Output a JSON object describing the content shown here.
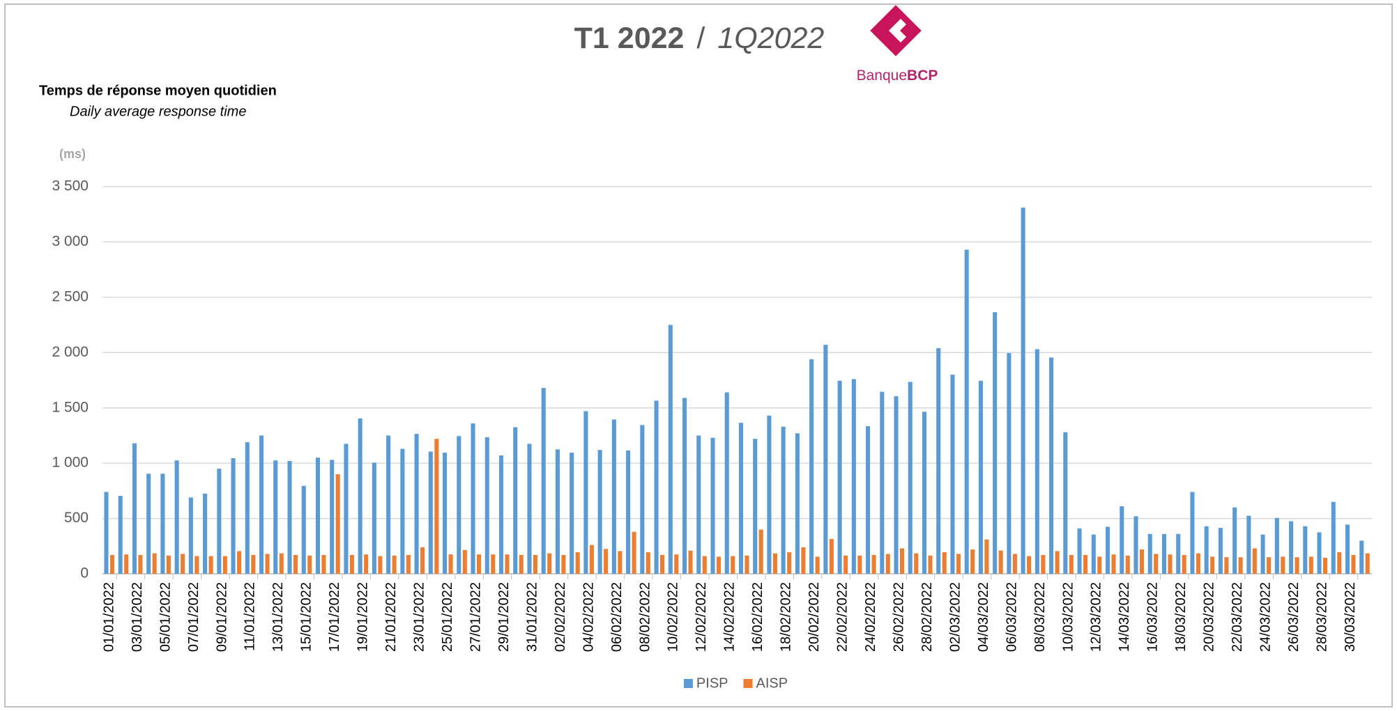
{
  "chart_data": {
    "type": "bar",
    "title": [
      "T1 2022",
      "/",
      "1Q2022"
    ],
    "logo": [
      "Banque",
      "BCP"
    ],
    "subtitle": [
      "Temps de réponse moyen quotidien",
      "Daily average response time"
    ],
    "y_label": "(ms)",
    "categories": [
      "01/01/2022",
      null,
      "03/01/2022",
      null,
      "05/01/2022",
      null,
      "07/01/2022",
      null,
      "09/01/2022",
      null,
      "11/01/2022",
      null,
      "13/01/2022",
      null,
      "15/01/2022",
      null,
      "17/01/2022",
      null,
      "19/01/2022",
      null,
      "21/01/2022",
      null,
      "23/01/2022",
      null,
      "25/01/2022",
      null,
      "27/01/2022",
      null,
      "29/01/2022",
      null,
      "31/01/2022",
      null,
      "02/02/2022",
      null,
      "04/02/2022",
      null,
      "06/02/2022",
      null,
      "08/02/2022",
      null,
      "10/02/2022",
      null,
      "12/02/2022",
      null,
      "14/02/2022",
      null,
      "16/02/2022",
      null,
      "18/02/2022",
      null,
      "20/02/2022",
      null,
      "22/02/2022",
      null,
      "24/02/2022",
      null,
      "26/02/2022",
      null,
      "28/02/2022",
      null,
      "02/03/2022",
      null,
      "04/03/2022",
      null,
      "06/03/2022",
      null,
      "08/03/2022",
      null,
      "10/03/2022",
      null,
      "12/03/2022",
      null,
      "14/03/2022",
      null,
      "16/03/2022",
      null,
      "18/03/2022",
      null,
      "20/03/2022",
      null,
      "22/03/2022",
      null,
      "24/03/2022",
      null,
      "26/03/2022",
      null,
      "28/03/2022",
      null,
      "30/03/2022",
      null
    ],
    "series": [
      {
        "name": "PISP",
        "color": "#5b9bd5",
        "values": [
          740,
          705,
          1180,
          905,
          905,
          1025,
          690,
          725,
          950,
          1045,
          1190,
          1250,
          1025,
          1020,
          795,
          1050,
          1030,
          1175,
          1405,
          1005,
          1250,
          1130,
          1265,
          1105,
          1095,
          1245,
          1360,
          1235,
          1070,
          1325,
          1175,
          1680,
          1125,
          1095,
          1470,
          1120,
          1395,
          1115,
          1345,
          1565,
          2250,
          1590,
          1250,
          1230,
          1640,
          1365,
          1220,
          1430,
          1330,
          1270,
          1940,
          2070,
          1745,
          1760,
          1335,
          1645,
          1605,
          1735,
          1465,
          2040,
          1800,
          2930,
          1745,
          2365,
          1995,
          3310,
          2030,
          1955,
          1280,
          410,
          355,
          425,
          610,
          520,
          360,
          360,
          360,
          740,
          430,
          415,
          600,
          525,
          355,
          505,
          475,
          430,
          375,
          650,
          445,
          300
        ]
      },
      {
        "name": "AISP",
        "color": "#ed7d31",
        "values": [
          170,
          175,
          170,
          185,
          165,
          180,
          160,
          160,
          160,
          205,
          170,
          180,
          185,
          170,
          165,
          170,
          900,
          170,
          175,
          160,
          165,
          170,
          240,
          1220,
          175,
          215,
          175,
          175,
          175,
          170,
          170,
          185,
          170,
          195,
          260,
          225,
          205,
          380,
          195,
          170,
          175,
          210,
          160,
          155,
          160,
          165,
          400,
          185,
          195,
          240,
          155,
          315,
          165,
          165,
          170,
          180,
          230,
          185,
          165,
          195,
          180,
          220,
          310,
          210,
          180,
          160,
          170,
          205,
          170,
          170,
          155,
          175,
          165,
          220,
          180,
          175,
          170,
          185,
          155,
          150,
          150,
          230,
          150,
          155,
          150,
          155,
          145,
          195,
          170,
          185
        ]
      }
    ],
    "ylim": [
      0,
      3500
    ],
    "yticks": [
      0,
      500,
      {
        "value": 1000,
        "label": "1 000"
      },
      {
        "value": 1500,
        "label": "1 500"
      },
      {
        "value": 2000,
        "label": "2 000"
      },
      {
        "value": 2500,
        "label": "2 500"
      },
      {
        "value": 3000,
        "label": "3 000"
      },
      {
        "value": 3500,
        "label": "3 500"
      }
    ],
    "grid": true,
    "legend": "bottom"
  }
}
